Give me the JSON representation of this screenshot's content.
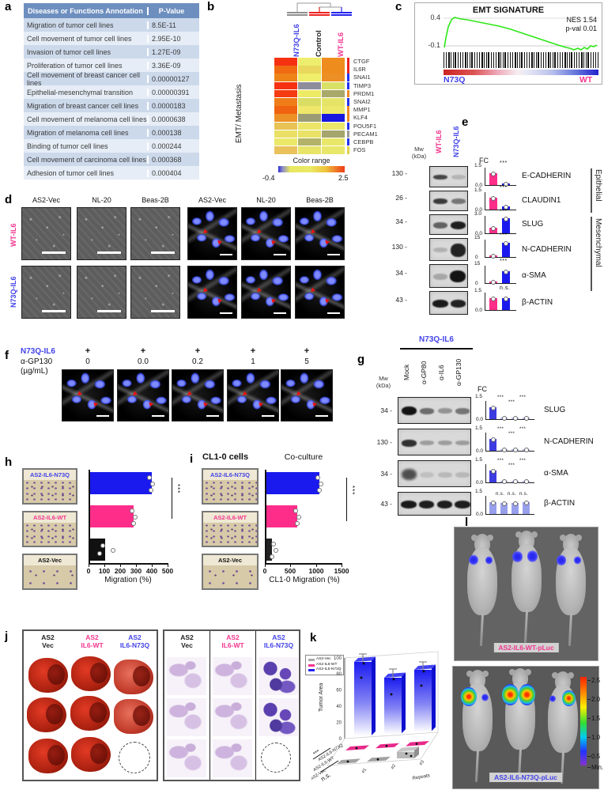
{
  "letters": {
    "a": "a",
    "b": "b",
    "c": "c",
    "d": "d",
    "e": "e",
    "f": "f",
    "g": "g",
    "h": "h",
    "i": "i",
    "j": "j",
    "k": "k",
    "l": "l"
  },
  "colors": {
    "pink": "#f2368e",
    "blue": "#4343e8",
    "bar_blue": "#1a1aee",
    "bar_pink": "#ff2d8a",
    "table_header": "#6d8fbf",
    "heat_max": "#ee2222",
    "heat_min": "#2222cc"
  },
  "panel_a": {
    "header": [
      "Diseases or Functions Annotation",
      "P-Value"
    ],
    "rows": [
      {
        "name": "Migration of tumor cell lines",
        "p": "8.5E-11"
      },
      {
        "name": "Cell movement of tumor cell lines",
        "p": "2.95E-10"
      },
      {
        "name": "Invasion of tumor cell lines",
        "p": "1.27E-09"
      },
      {
        "name": "Proliferation of tumor cell lines",
        "p": "3.36E-09"
      },
      {
        "name": "Cell movement of breast cancer cell lines",
        "p": "0.00000127"
      },
      {
        "name": "Epithelial-mesenchymal transition",
        "p": "0.00000391"
      },
      {
        "name": "Migration of breast cancer cell lines",
        "p": "0.0000183"
      },
      {
        "name": "Cell movement of melanoma cell lines",
        "p": "0.0000638"
      },
      {
        "name": "Migration of melanoma cell lines",
        "p": "0.000138"
      },
      {
        "name": "Binding of tumor cell lines",
        "p": "0.000244"
      },
      {
        "name": "Cell movement of carcinoma cell lines",
        "p": "0.000368"
      },
      {
        "name": "Adhesion of tumor cell lines",
        "p": "0.000404"
      }
    ]
  },
  "panel_b": {
    "columns": [
      {
        "label": "N73Q-IL6",
        "color": "#4343e8",
        "bar": "#909090"
      },
      {
        "label": "Control",
        "color": "#222222",
        "bar": "#ee2222"
      },
      {
        "label": "WT-IL6",
        "color": "#f2368e",
        "bar": "#2222ee"
      }
    ],
    "row_label": "EMT/ Metastasis",
    "genes": [
      "CTGF",
      "IL6R",
      "SNAI1",
      "TIMP3",
      "PRDM1",
      "SNAI2",
      "MMP1",
      "KLF4",
      "POU5F1",
      "PECAM1",
      "CEBPB",
      "FOS"
    ],
    "legend": {
      "title": "Color range",
      "min": "-0.4",
      "max": "2.5"
    },
    "heat": [
      [
        "#f53111",
        "#eeee6e",
        "#ef8c1e"
      ],
      [
        "#f06a12",
        "#e9d85c",
        "#ef8c1e"
      ],
      [
        "#ee8418",
        "#efee6a",
        "#ec9026"
      ],
      [
        "#f53111",
        "#8d8d9c",
        "#d9e066"
      ],
      [
        "#f53b11",
        "#eeea66",
        "#a9a96c"
      ],
      [
        "#ee7d18",
        "#d9dd64",
        "#e6e468"
      ],
      [
        "#f06310",
        "#eee76a",
        "#ece86a"
      ],
      [
        "#ec9126",
        "#9c9c74",
        "#1717e0"
      ],
      [
        "#e8c254",
        "#ebe668",
        "#eae76a"
      ],
      [
        "#eae066",
        "#e8e266",
        "#a5a56e"
      ],
      [
        "#ece86a",
        "#b2b26a",
        "#e8e76a"
      ],
      [
        "#eac25c",
        "#e7e468",
        "#e9e76a"
      ]
    ],
    "strip": [
      "#ee2222",
      "#ee2222",
      "#2233ee",
      "#2233ee",
      "#ee8822",
      "#2233ee",
      "#ee8822",
      "#ee8822",
      "#2233ee",
      "#9a9a9a",
      "#2233ee",
      "#e0d24a"
    ]
  },
  "panel_c": {
    "title": "EMT SIGNATURE",
    "nes": "NES 1.54",
    "pval": "p-val 0.01",
    "ytick_top": "0.4",
    "ytick_bottom": "-0.1",
    "left_label": "N73Q",
    "right_label": "WT"
  },
  "panel_d": {
    "col_headers": [
      "AS2-Vec",
      "NL-20",
      "Beas-2B",
      "AS2-Vec",
      "NL-20",
      "Beas-2B"
    ],
    "row_labels": [
      {
        "label": "WT-IL6"
      },
      {
        "label": "N73Q-IL6"
      }
    ]
  },
  "panel_e": {
    "mw": "Mw",
    "kda": "(kDa)",
    "fc_label": "FC",
    "lanes": [
      {
        "label": "WT-IL6"
      },
      {
        "label": "N73Q-IL6"
      }
    ],
    "groups": [
      {
        "label": "Epithelial"
      },
      {
        "label": "Mesenchymal"
      }
    ],
    "blots": [
      {
        "mw": "130 -",
        "protein": "E-CADHERIN",
        "ymax": "1.5",
        "ymin": "0.0",
        "sig": "***",
        "bars": [
          "67%",
          "10%"
        ]
      },
      {
        "mw": "26 -",
        "protein": "CLAUDIN1",
        "ymax": "1.5",
        "ymin": "0.0",
        "sig": "***",
        "bars": [
          "67%",
          "17%"
        ]
      },
      {
        "mw": "34 -",
        "protein": "SLUG",
        "ymax": "3.0",
        "ymin": "0.0",
        "sig": "***",
        "bars": [
          "33%",
          "87%"
        ]
      },
      {
        "mw": "130 -",
        "protein": "N-CADHERIN",
        "ymax": "15",
        "ymin": "0",
        "sig": "***",
        "bars": [
          "7%",
          "83%"
        ]
      },
      {
        "mw": "34 -",
        "protein": "α-SMA",
        "ymax": "15",
        "ymin": "0",
        "sig": "***",
        "bars": [
          "7%",
          "67%"
        ]
      },
      {
        "mw": "43 -",
        "protein": "β-ACTIN",
        "ymax": "1.5",
        "ymin": "0.0",
        "sig": "n.s.",
        "bars": [
          "67%",
          "67%"
        ]
      }
    ]
  },
  "panel_f": {
    "row1_label": "N73Q-IL6",
    "row2_label": "α-GP130",
    "unit": "(µg/mL)",
    "plus": "+",
    "doses": [
      "0",
      "0.0",
      "0.2",
      "1",
      "5"
    ]
  },
  "panel_g": {
    "title": "N73Q-IL6",
    "mw": "Mw",
    "kda": "(kDa)",
    "fc_label": "FC",
    "lanes": [
      "Mock",
      "α-GP80",
      "α-IL6",
      "α-GP130"
    ],
    "blots": [
      {
        "mw": "34 -",
        "protein": "SLUG",
        "ymax": "1.5",
        "ymin": "0.0",
        "sigs": [
          "***",
          "***",
          "***"
        ],
        "bars": [
          "67%",
          "9%",
          "7%",
          "9%"
        ]
      },
      {
        "mw": "130 -",
        "protein": "N-CADHERIN",
        "ymax": "1.5",
        "ymin": "0.0",
        "sigs": [
          "***",
          "***",
          "***"
        ],
        "bars": [
          "67%",
          "9%",
          "7%",
          "9%"
        ]
      },
      {
        "mw": "34 -",
        "protein": "α-SMA",
        "ymax": "1.5",
        "ymin": "0.0",
        "sigs": [
          "***",
          "***",
          "***"
        ],
        "bars": [
          "67%",
          "9%",
          "7%",
          "9%"
        ]
      },
      {
        "mw": "43 -",
        "protein": "β-ACTIN",
        "ymax": "1.5",
        "ymin": "0.0",
        "sigs": [
          "n.s.",
          "n.s.",
          "n.s."
        ],
        "bars": [
          "66%",
          "63%",
          "63%",
          "64%"
        ]
      }
    ]
  },
  "panel_h": {
    "thumbs": [
      {
        "label": "AS2-IL6-N73Q"
      },
      {
        "label": "AS2-IL6-WT"
      },
      {
        "label": "AS2-Vec"
      }
    ],
    "bars": [
      {
        "w": "78%"
      },
      {
        "w": "55%"
      },
      {
        "w": "19%"
      }
    ],
    "xticks": [
      "0",
      "100",
      "200",
      "300",
      "400",
      "500"
    ],
    "xlabel": "Migration  (%)",
    "sig": "***"
  },
  "panel_i": {
    "title": "CL1-0 cells",
    "subtitle": "Co-culture",
    "thumbs": [
      {
        "label": "AS2-IL6-N73Q"
      },
      {
        "label": "AS2-IL6-WT"
      },
      {
        "label": "AS2-Vec"
      }
    ],
    "bars": [
      {
        "w": "69%"
      },
      {
        "w": "40%"
      },
      {
        "w": "7%"
      }
    ],
    "xticks": [
      "0",
      "500",
      "1000",
      "1500"
    ],
    "xlabel": "CL1-0 Migration (%)",
    "sig": "***"
  },
  "panel_j": {
    "headers": [
      {
        "l1": "AS2",
        "l2": "Vec",
        "color": "#222222"
      },
      {
        "l1": "AS2",
        "l2": "IL6-WT",
        "color": "#f2368e"
      },
      {
        "l1": "AS2",
        "l2": "IL6-N73Q",
        "color": "#4343e8"
      }
    ]
  },
  "panel_k": {
    "legend": [
      {
        "label": "AS2-Vec",
        "color": "#aaaaaa"
      },
      {
        "label": "AS2-IL6-WT",
        "color": "#f2368e"
      },
      {
        "label": "AS2-IL6-N73Q",
        "color": "#2222ee"
      }
    ],
    "ylabel": "Tumor Area",
    "yticks": [
      "0",
      "20",
      "40",
      "60",
      "80",
      "100"
    ],
    "rows": [
      "AS2-IL6-N73Q",
      "AS2-IL6-WT",
      "AS2-Vec"
    ],
    "xticks": [
      "#1",
      "#2",
      "#3"
    ],
    "xlabel": "Repeats",
    "sig1": "***",
    "sig2": "n.s."
  },
  "panel_l": {
    "top_label": "AS2-IL6-WT-pLuc",
    "bottom_label": "AS2-IL6-N73Q-pLuc",
    "scale": [
      "2.5",
      "2.0",
      "1.5",
      "1.0",
      "0.5",
      "Min."
    ]
  },
  "chart_data": [
    {
      "type": "heatmap",
      "panel": "b",
      "columns": [
        "N73Q-IL6",
        "Control",
        "WT-IL6"
      ],
      "rows": [
        "CTGF",
        "IL6R",
        "SNAI1",
        "TIMP3",
        "PRDM1",
        "SNAI2",
        "MMP1",
        "KLF4",
        "POU5F1",
        "PECAM1",
        "CEBPB",
        "FOS"
      ],
      "color_range": [
        -0.4,
        2.5
      ],
      "row_group": "EMT/ Metastasis"
    },
    {
      "type": "line",
      "panel": "c",
      "title": "EMT SIGNATURE",
      "annotations": [
        "NES 1.54",
        "p-val 0.01"
      ],
      "yticks": [
        0.4,
        -0.1
      ],
      "x_ends": [
        "N73Q",
        "WT"
      ],
      "series": [
        {
          "name": "enrichment score",
          "x": [
            0,
            0.03,
            0.06,
            0.1,
            0.2,
            0.35,
            0.5,
            0.65,
            0.8,
            0.88,
            0.93,
            0.96,
            1.0
          ],
          "y": [
            -0.13,
            0.2,
            0.35,
            0.4,
            0.38,
            0.33,
            0.26,
            0.15,
            0.0,
            -0.12,
            -0.16,
            -0.1,
            -0.12
          ]
        }
      ]
    },
    {
      "type": "bar",
      "panel": "e_FC",
      "categories": [
        "E-CADHERIN",
        "CLAUDIN1",
        "SLUG",
        "N-CADHERIN",
        "α-SMA",
        "β-ACTIN"
      ],
      "series": [
        {
          "name": "WT-IL6",
          "values": [
            1.0,
            1.0,
            1.0,
            1.0,
            1.0,
            1.0
          ]
        },
        {
          "name": "N73Q-IL6",
          "values": [
            0.15,
            0.25,
            2.6,
            12.5,
            10.0,
            1.0
          ]
        }
      ],
      "ylabel": "FC",
      "sig": [
        "***",
        "***",
        "***",
        "***",
        "***",
        "n.s."
      ]
    },
    {
      "type": "bar",
      "panel": "g_FC",
      "categories": [
        "SLUG",
        "N-CADHERIN",
        "α-SMA",
        "β-ACTIN"
      ],
      "series": [
        {
          "name": "Mock",
          "values": [
            1.0,
            1.0,
            1.0,
            1.0
          ]
        },
        {
          "name": "α-GP80",
          "values": [
            0.13,
            0.13,
            0.13,
            0.95
          ]
        },
        {
          "name": "α-IL6",
          "values": [
            0.1,
            0.1,
            0.1,
            0.95
          ]
        },
        {
          "name": "α-GP130",
          "values": [
            0.13,
            0.13,
            0.13,
            0.96
          ]
        }
      ],
      "ylabel": "FC"
    },
    {
      "type": "bar",
      "panel": "h",
      "orientation": "horizontal",
      "categories": [
        "AS2-IL6-N73Q",
        "AS2-IL6-WT",
        "AS2-Vec"
      ],
      "values": [
        390,
        275,
        95
      ],
      "xlabel": "Migration (%)",
      "xlim": [
        0,
        500
      ],
      "sig": "***"
    },
    {
      "type": "bar",
      "panel": "i",
      "orientation": "horizontal",
      "title": "Co-culture",
      "categories": [
        "AS2-IL6-N73Q",
        "AS2-IL6-WT",
        "AS2-Vec"
      ],
      "values": [
        1040,
        600,
        105
      ],
      "xlabel": "CL1-0 Migration (%)",
      "xlim": [
        0,
        1500
      ],
      "sig": "***"
    },
    {
      "type": "bar",
      "panel": "k",
      "categories": [
        "#1",
        "#2",
        "#3"
      ],
      "series": [
        {
          "name": "AS2-IL6-N73Q",
          "values": [
            92,
            72,
            78
          ]
        },
        {
          "name": "AS2-IL6-WT",
          "values": [
            2,
            2,
            2
          ]
        },
        {
          "name": "AS2-Vec",
          "values": [
            2,
            2,
            12
          ]
        }
      ],
      "ylabel": "Tumor Area",
      "ylim": [
        0,
        100
      ],
      "xlabel": "Repeats",
      "sig": [
        "***",
        "n.s."
      ]
    }
  ]
}
